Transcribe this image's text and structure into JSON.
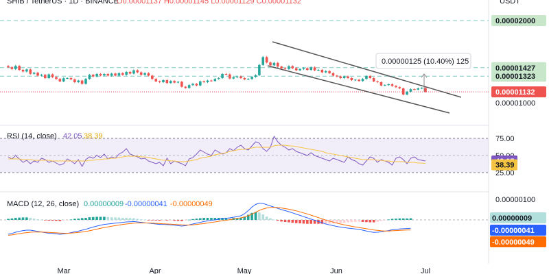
{
  "header": {
    "symbol_line": "SHIB / TetherUS · 1D · BINANCE",
    "quote": "O0.00001137 H0.00001145 L0.00001129 C0.00001132",
    "currency": "USDT"
  },
  "colors": {
    "up": "#26a69a",
    "down": "#ef5350",
    "rsi": "#7e57c2",
    "rsi_ma": "#f5c342",
    "macd": "#2962ff",
    "signal": "#ff6d00",
    "level_line": "#26a69a",
    "channel": "#555555"
  },
  "chart_data": [
    {
      "type": "candlestick",
      "title": "SHIB / TetherUS · 1D · BINANCE",
      "x_axis_months": [
        "Mar",
        "Apr",
        "May",
        "Jun",
        "Jul"
      ],
      "price_axis_ticks": [
        "0.00002000",
        "0.00001427",
        "0.00001323",
        "0.00001132",
        "0.00001000"
      ],
      "levels": [
        {
          "value": 2e-05,
          "label": "0.00002000",
          "style": "dashed"
        },
        {
          "value": 1.427e-05,
          "label": "0.00001427",
          "style": "dashed"
        },
        {
          "value": 1.323e-05,
          "label": "0.00001323",
          "style": "dashed"
        },
        {
          "value": 1.132e-05,
          "label": "0.00001132",
          "style": "current-price"
        }
      ],
      "annotation": "0.00000125 (10.40%) 125",
      "closes": [
        1.432e-05,
        1.41e-05,
        1.448e-05,
        1.4e-05,
        1.38e-05,
        1.405e-05,
        1.352e-05,
        1.365e-05,
        1.33e-05,
        1.34e-05,
        1.3e-05,
        1.345e-05,
        1.312e-05,
        1.29e-05,
        1.26e-05,
        1.298e-05,
        1.3e-05,
        1.285e-05,
        1.25e-05,
        1.27e-05,
        1.23e-05,
        1.29e-05,
        1.34e-05,
        1.32e-05,
        1.35e-05,
        1.332e-05,
        1.35e-05,
        1.33e-05,
        1.355e-05,
        1.33e-05,
        1.36e-05,
        1.34e-05,
        1.375e-05,
        1.355e-05,
        1.395e-05,
        1.37e-05,
        1.34e-05,
        1.36e-05,
        1.33e-05,
        1.29e-05,
        1.26e-05,
        1.25e-05,
        1.275e-05,
        1.24e-05,
        1.265e-05,
        1.245e-05,
        1.255e-05,
        1.195e-05,
        1.18e-05,
        1.215e-05,
        1.23e-05,
        1.21e-05,
        1.26e-05,
        1.25e-05,
        1.27e-05,
        1.265e-05,
        1.29e-05,
        1.3e-05,
        1.35e-05,
        1.345e-05,
        1.295e-05,
        1.31e-05,
        1.32e-05,
        1.3e-05,
        1.285e-05,
        1.29e-05,
        1.315e-05,
        1.335e-05,
        1.46e-05,
        1.555e-05,
        1.49e-05,
        1.455e-05,
        1.485e-05,
        1.44e-05,
        1.42e-05,
        1.41e-05,
        1.445e-05,
        1.42e-05,
        1.395e-05,
        1.41e-05,
        1.42e-05,
        1.4e-05,
        1.43e-05,
        1.395e-05,
        1.4e-05,
        1.37e-05,
        1.385e-05,
        1.36e-05,
        1.33e-05,
        1.32e-05,
        1.3e-05,
        1.32e-05,
        1.3e-05,
        1.275e-05,
        1.28e-05,
        1.265e-05,
        1.29e-05,
        1.325e-05,
        1.3e-05,
        1.26e-05,
        1.25e-05,
        1.21e-05,
        1.215e-05,
        1.225e-05,
        1.205e-05,
        1.19e-05,
        1.175e-05,
        1.1e-05,
        1.135e-05,
        1.165e-05,
        1.16e-05,
        1.175e-05,
        1.18e-05,
        1.132e-05
      ]
    },
    {
      "type": "line",
      "title": "RSI (14, close)",
      "values_text": [
        "42.05",
        "38.39"
      ],
      "y_ticks": [
        "75.00",
        "50.00",
        "25.00"
      ],
      "ylim": [
        25,
        75
      ],
      "series": [
        {
          "name": "RSI",
          "values": [
            48,
            45,
            50,
            45,
            40,
            43,
            38,
            42,
            40,
            46,
            44,
            40,
            42,
            39,
            36,
            38,
            45,
            42,
            38,
            44,
            34,
            44,
            48,
            46,
            50,
            47,
            52,
            45,
            48,
            46,
            52,
            55,
            60,
            52,
            50,
            48,
            45,
            46,
            42,
            40,
            38,
            40,
            35,
            46,
            38,
            42,
            40,
            38,
            35,
            45,
            47,
            52,
            58,
            55,
            52,
            50,
            58,
            55,
            52,
            54,
            60,
            57,
            62,
            65,
            60,
            58,
            64,
            70,
            68,
            60,
            56,
            62,
            78,
            70,
            65,
            62,
            58,
            60,
            56,
            54,
            52,
            50,
            54,
            50,
            48,
            46,
            44,
            42,
            46,
            44,
            42,
            40,
            48,
            44,
            42,
            38,
            36,
            42,
            48,
            46,
            40,
            44,
            42,
            40,
            36,
            46,
            48,
            44,
            38,
            46,
            48,
            44,
            43,
            42.05
          ]
        },
        {
          "name": "MA",
          "values": [
            45,
            45,
            45,
            45,
            44,
            44,
            44,
            43,
            43,
            43,
            43,
            43,
            42,
            42,
            42,
            42,
            42,
            42,
            42,
            42,
            42,
            42,
            43,
            43,
            44,
            44,
            45,
            45,
            46,
            46,
            47,
            48,
            49,
            49,
            49,
            49,
            48,
            48,
            47,
            46,
            45,
            44,
            43,
            43,
            42,
            42,
            41,
            41,
            41,
            42,
            43,
            44,
            46,
            47,
            48,
            49,
            51,
            52,
            53,
            54,
            56,
            57,
            58,
            59,
            59,
            60,
            61,
            62,
            62,
            62,
            62,
            62,
            64,
            65,
            65,
            65,
            64,
            64,
            63,
            62,
            61,
            60,
            59,
            58,
            57,
            56,
            54,
            53,
            52,
            51,
            50,
            49,
            48,
            47,
            46,
            45,
            44,
            44,
            44,
            44,
            43,
            43,
            42,
            42,
            41,
            41,
            41,
            41,
            40,
            40,
            40,
            39,
            39,
            38.39
          ]
        }
      ]
    },
    {
      "type": "bar",
      "title": "MACD (12, 26, close)",
      "values_text": [
        "0.00000009",
        "-0.00000041",
        "-0.00000049"
      ],
      "y_ticks": [
        "0.00000100"
      ],
      "series": [
        {
          "name": "MACD",
          "values": [
            -7e-07,
            -6.6e-07,
            -6e-07,
            -5.6e-07,
            -5.2e-07,
            -5e-07,
            -5e-07,
            -5.3e-07,
            -5.6e-07,
            -5.9e-07,
            -6.2e-07,
            -6.5e-07,
            -6.6e-07,
            -6.8e-07,
            -7e-07,
            -6.8e-07,
            -6.6e-07,
            -6.2e-07,
            -5.8e-07,
            -5.5e-07,
            -5e-07,
            -4.6e-07,
            -4e-07,
            -3.5e-07,
            -3e-07,
            -2.6e-07,
            -2.2e-07,
            -2e-07,
            -1.8e-07,
            -1.6e-07,
            -1.4e-07,
            -1.2e-07,
            -1e-07,
            -9e-08,
            -8e-08,
            -1e-07,
            -1.2e-07,
            -1.4e-07,
            -1.6e-07,
            -1.8e-07,
            -2e-07,
            -2.2e-07,
            -2.2e-07,
            -2.3e-07,
            -2.4e-07,
            -2.6e-07,
            -2.8e-07,
            -3e-07,
            -2.8e-07,
            -2.4e-07,
            -2e-07,
            -1.6e-07,
            -1.2e-07,
            -8e-08,
            -5e-08,
            -2e-08,
            0.0,
            3e-08,
            6e-08,
            8e-08,
            1e-07,
            1.3e-07,
            1.6e-07,
            2e-07,
            3e-07,
            4.5e-07,
            6.2e-07,
            7.5e-07,
            8.2e-07,
            8e-07,
            7.4e-07,
            6.8e-07,
            6.2e-07,
            5.6e-07,
            5e-07,
            4.5e-07,
            4e-07,
            3.4e-07,
            2.8e-07,
            2.2e-07,
            1.6e-07,
            1e-07,
            4e-08,
            -2e-08,
            -8e-08,
            -1.4e-07,
            -2e-07,
            -2.4e-07,
            -2.8e-07,
            -3.2e-07,
            -3.5e-07,
            -3.8e-07,
            -4e-07,
            -4.2e-07,
            -4.4e-07,
            -4.6e-07,
            -5e-07,
            -5.4e-07,
            -5.8e-07,
            -6.1e-07,
            -6e-07,
            -5.8e-07,
            -5.5e-07,
            -5.2e-07,
            -4.8e-07,
            -4.6e-07,
            -4.4e-07,
            -4.3e-07,
            -4.2e-07,
            -4.1e-07
          ]
        },
        {
          "name": "Signal",
          "values": [
            -7.5e-07,
            -7.3e-07,
            -7e-07,
            -6.7e-07,
            -6.4e-07,
            -6.2e-07,
            -6e-07,
            -5.9e-07,
            -5.9e-07,
            -5.9e-07,
            -6e-07,
            -6.1e-07,
            -6.2e-07,
            -6.3e-07,
            -6.4e-07,
            -6.5e-07,
            -6.5e-07,
            -6.4e-07,
            -6.3e-07,
            -6.1e-07,
            -5.9e-07,
            -5.6e-07,
            -5.3e-07,
            -4.9e-07,
            -4.5e-07,
            -4.1e-07,
            -3.7e-07,
            -3.4e-07,
            -3.1e-07,
            -2.8e-07,
            -2.5e-07,
            -2.2e-07,
            -2e-07,
            -1.8e-07,
            -1.6e-07,
            -1.5e-07,
            -1.5e-07,
            -1.5e-07,
            -1.5e-07,
            -1.6e-07,
            -1.7e-07,
            -1.8e-07,
            -1.9e-07,
            -2e-07,
            -2.1e-07,
            -2.2e-07,
            -2.3e-07,
            -2.4e-07,
            -2.5e-07,
            -2.5e-07,
            -2.4e-07,
            -2.2e-07,
            -2e-07,
            -1.8e-07,
            -1.5e-07,
            -1.2e-07,
            -1e-07,
            -7e-08,
            -4e-08,
            -2e-08,
            1e-08,
            4e-08,
            7e-08,
            1e-07,
            1.4e-07,
            2e-07,
            2.8e-07,
            3.7e-07,
            4.6e-07,
            5.3e-07,
            5.8e-07,
            6e-07,
            6.1e-07,
            6e-07,
            5.8e-07,
            5.5e-07,
            5.2e-07,
            4.8e-07,
            4.4e-07,
            3.9e-07,
            3.4e-07,
            2.9e-07,
            2.3e-07,
            1.7e-07,
            1.1e-07,
            5e-08,
            -1e-08,
            -6e-08,
            -1.1e-07,
            -1.6e-07,
            -2e-07,
            -2.4e-07,
            -2.8e-07,
            -3.1e-07,
            -3.4e-07,
            -3.7e-07,
            -4e-07,
            -4.3e-07,
            -4.6e-07,
            -4.9e-07,
            -5.1e-07,
            -5.3e-07,
            -5.4e-07,
            -5.4e-07,
            -5.3e-07,
            -5.2e-07,
            -5.1e-07,
            -5e-07,
            -4.9e-07,
            -4.9e-07
          ]
        }
      ]
    }
  ]
}
